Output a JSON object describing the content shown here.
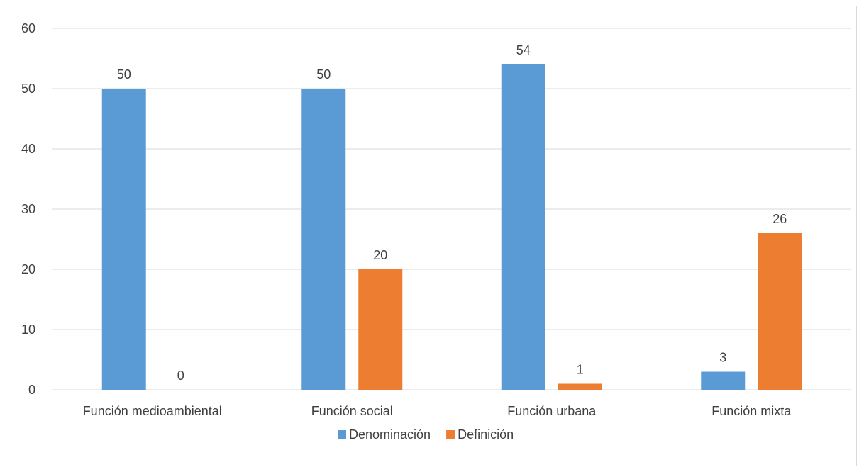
{
  "chart_data": {
    "type": "bar",
    "categories": [
      "Función medioambiental",
      "Función social",
      "Función urbana",
      "Función mixta"
    ],
    "series": [
      {
        "name": "Denominación",
        "values": [
          50,
          50,
          54,
          3
        ],
        "color": "#5b9bd5"
      },
      {
        "name": "Definición",
        "values": [
          0,
          20,
          1,
          26
        ],
        "color": "#ed7d31"
      }
    ],
    "ylim": [
      0,
      60
    ],
    "yticks": [
      0,
      10,
      20,
      30,
      40,
      50,
      60
    ],
    "grid": true,
    "legend": "bottom",
    "data_labels": true
  }
}
